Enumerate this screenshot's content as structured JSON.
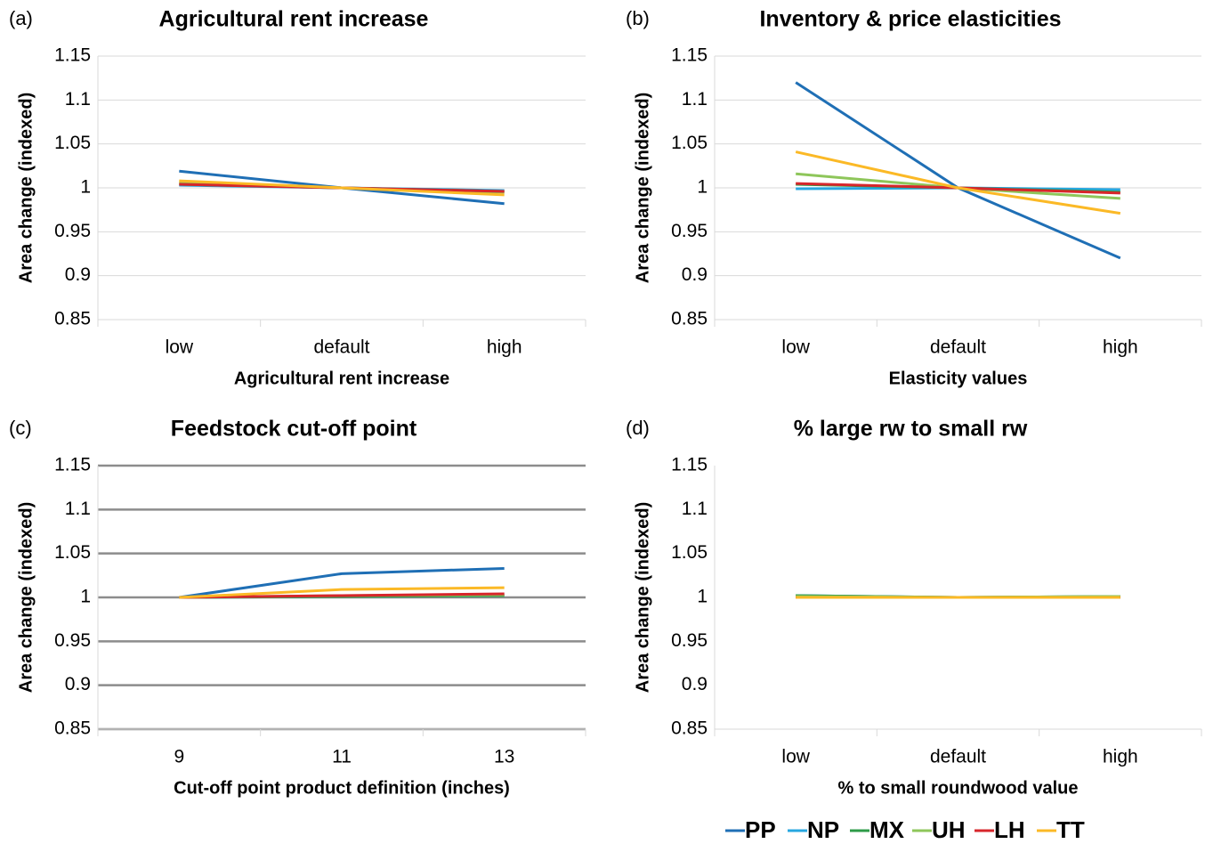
{
  "chart_data": [
    {
      "type": "line",
      "panel": "(a)",
      "title": "Agricultural rent increase",
      "x_label": "Agricultural rent increase",
      "y_label": "Area change (indexed)",
      "categories": [
        "low",
        "default",
        "high"
      ],
      "ylim": [
        0.85,
        1.15
      ],
      "yticks": [
        0.85,
        0.9,
        0.95,
        1,
        1.05,
        1.1,
        1.15
      ],
      "grid": true,
      "grid_color": "#d9d9d9",
      "series": [
        {
          "name": "PP",
          "color": "#1f6fb5",
          "values": [
            1.019,
            1,
            0.982
          ]
        },
        {
          "name": "NP",
          "color": "#27a7e0",
          "values": [
            1.003,
            1,
            0.997
          ]
        },
        {
          "name": "MX",
          "color": "#2e9b48",
          "values": [
            1.004,
            1,
            0.996
          ]
        },
        {
          "name": "UH",
          "color": "#8ec65a",
          "values": [
            1.006,
            1,
            0.995
          ]
        },
        {
          "name": "LH",
          "color": "#d7262b",
          "values": [
            1.004,
            1,
            0.996
          ]
        },
        {
          "name": "TT",
          "color": "#fbb926",
          "values": [
            1.008,
            1,
            0.992
          ]
        }
      ]
    },
    {
      "type": "line",
      "panel": "(b)",
      "title": "Inventory & price elasticities",
      "x_label": "Elasticity values",
      "y_label": "Area change (indexed)",
      "categories": [
        "low",
        "default",
        "high"
      ],
      "ylim": [
        0.85,
        1.15
      ],
      "yticks": [
        0.85,
        0.9,
        0.95,
        1,
        1.05,
        1.1,
        1.15
      ],
      "grid": true,
      "grid_color": "#d9d9d9",
      "series": [
        {
          "name": "PP",
          "color": "#1f6fb5",
          "values": [
            1.12,
            1,
            0.92
          ]
        },
        {
          "name": "NP",
          "color": "#27a7e0",
          "values": [
            0.999,
            1,
            0.998
          ]
        },
        {
          "name": "MX",
          "color": "#2e9b48",
          "values": [
            1.004,
            1,
            0.995
          ]
        },
        {
          "name": "UH",
          "color": "#8ec65a",
          "values": [
            1.016,
            1,
            0.988
          ]
        },
        {
          "name": "LH",
          "color": "#d7262b",
          "values": [
            1.005,
            1,
            0.994
          ]
        },
        {
          "name": "TT",
          "color": "#fbb926",
          "values": [
            1.041,
            1,
            0.971
          ]
        }
      ]
    },
    {
      "type": "line",
      "panel": "(c)",
      "title": "Feedstock cut-off point",
      "x_label": "Cut-off point product definition (inches)",
      "y_label": "Area change (indexed)",
      "categories": [
        "9",
        "11",
        "13"
      ],
      "ylim": [
        0.85,
        1.15
      ],
      "yticks": [
        0.85,
        0.9,
        0.95,
        1,
        1.05,
        1.1,
        1.15
      ],
      "grid": true,
      "grid_color": "#8c8c8c",
      "series": [
        {
          "name": "PP",
          "color": "#1f6fb5",
          "values": [
            1,
            1.027,
            1.033
          ]
        },
        {
          "name": "NP",
          "color": "#27a7e0",
          "values": [
            1,
            1.001,
            1.002
          ]
        },
        {
          "name": "MX",
          "color": "#2e9b48",
          "values": [
            1,
            1.001,
            1.002
          ]
        },
        {
          "name": "UH",
          "color": "#8ec65a",
          "values": [
            1,
            1.002,
            1.003
          ]
        },
        {
          "name": "LH",
          "color": "#d7262b",
          "values": [
            1,
            1.002,
            1.004
          ]
        },
        {
          "name": "TT",
          "color": "#fbb926",
          "values": [
            1,
            1.009,
            1.011
          ]
        }
      ]
    },
    {
      "type": "line",
      "panel": "(d)",
      "title": "% large rw to small rw",
      "x_label": "% to small roundwood value",
      "y_label": "Area change (indexed)",
      "categories": [
        "low",
        "default",
        "high"
      ],
      "ylim": [
        0.85,
        1.15
      ],
      "yticks": [
        0.85,
        0.9,
        0.95,
        1,
        1.05,
        1.1,
        1.15
      ],
      "grid": false,
      "grid_color": "#d9d9d9",
      "series": [
        {
          "name": "PP",
          "color": "#1f6fb5",
          "values": [
            1.002,
            1,
            1.001
          ]
        },
        {
          "name": "NP",
          "color": "#27a7e0",
          "values": [
            1,
            1,
            1
          ]
        },
        {
          "name": "MX",
          "color": "#2e9b48",
          "values": [
            1.002,
            1,
            1.001
          ]
        },
        {
          "name": "UH",
          "color": "#8ec65a",
          "values": [
            1.001,
            1,
            1.001
          ]
        },
        {
          "name": "LH",
          "color": "#d7262b",
          "values": [
            1,
            1,
            1
          ]
        },
        {
          "name": "TT",
          "color": "#fbb926",
          "values": [
            1,
            1,
            1
          ]
        }
      ]
    }
  ]
}
